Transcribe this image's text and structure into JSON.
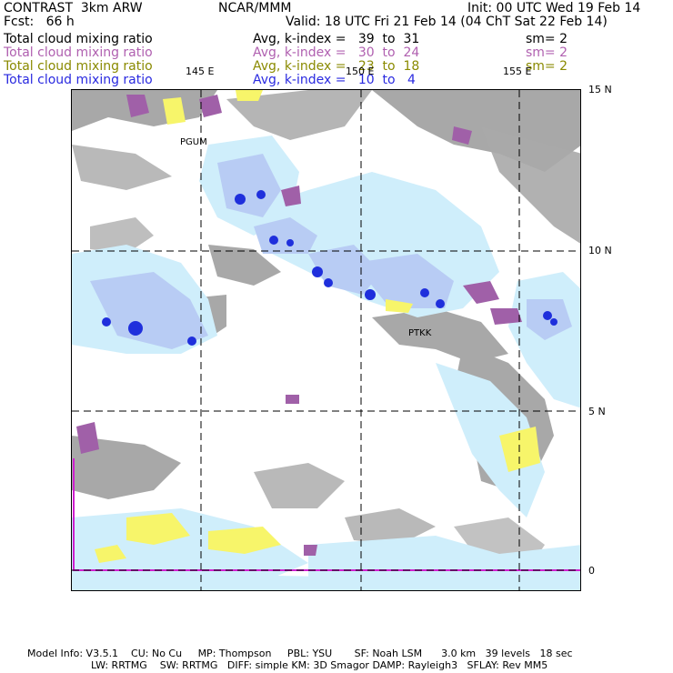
{
  "header": {
    "left_title": "CONTRAST  3km ARW",
    "center_title": "NCAR/MMM",
    "init": "Init: 00 UTC Wed 19 Feb 14",
    "fcst": "Fcst:   66 h",
    "valid": "Valid: 18 UTC Fri 21 Feb 14 (04 ChT Sat 22 Feb 14)"
  },
  "fields": [
    {
      "name": "Total cloud mixing ratio",
      "stat": "Avg, k-index =   39  to  31",
      "sm": "sm= 2",
      "color": "#000000"
    },
    {
      "name": "Total cloud mixing ratio",
      "stat": "Avg, k-index =   30  to  24",
      "sm": "sm= 2",
      "color": "#b060b0"
    },
    {
      "name": "Total cloud mixing ratio",
      "stat": "Avg, k-index =   23  to  18",
      "sm": "sm= 2",
      "color": "#8a8a00"
    },
    {
      "name": "Total cloud mixing ratio",
      "stat": "Avg, k-index =   10  to   4",
      "sm": "",
      "color": "#2a2ae0"
    }
  ],
  "map": {
    "longitude_labels": [
      "145 E",
      "150 E",
      "155 E"
    ],
    "latitude_labels": [
      "15 N",
      "10 N",
      "5 N",
      "0"
    ],
    "stations": [
      "PGUM",
      "PTKK"
    ]
  },
  "footer": {
    "line1": "Model Info: V3.5.1    CU: No Cu     MP: Thompson     PBL: YSU       SF: Noah LSM      3.0 km   39 levels   18 sec",
    "line2": "LW: RRTMG    SW: RRTMG   DIFF: simple KM: 3D Smagor DAMP: Rayleigh3   SFLAY: Rev MM5"
  },
  "colors": {
    "gray_cloud": "#a8a8a8",
    "light_blue": "#cfeefb",
    "mid_blue": "#b8ccf4",
    "deep_blue": "#1f2fdc",
    "purple": "#a060a8",
    "yellow": "#f7f56a",
    "magenta_line": "#d020d0"
  }
}
